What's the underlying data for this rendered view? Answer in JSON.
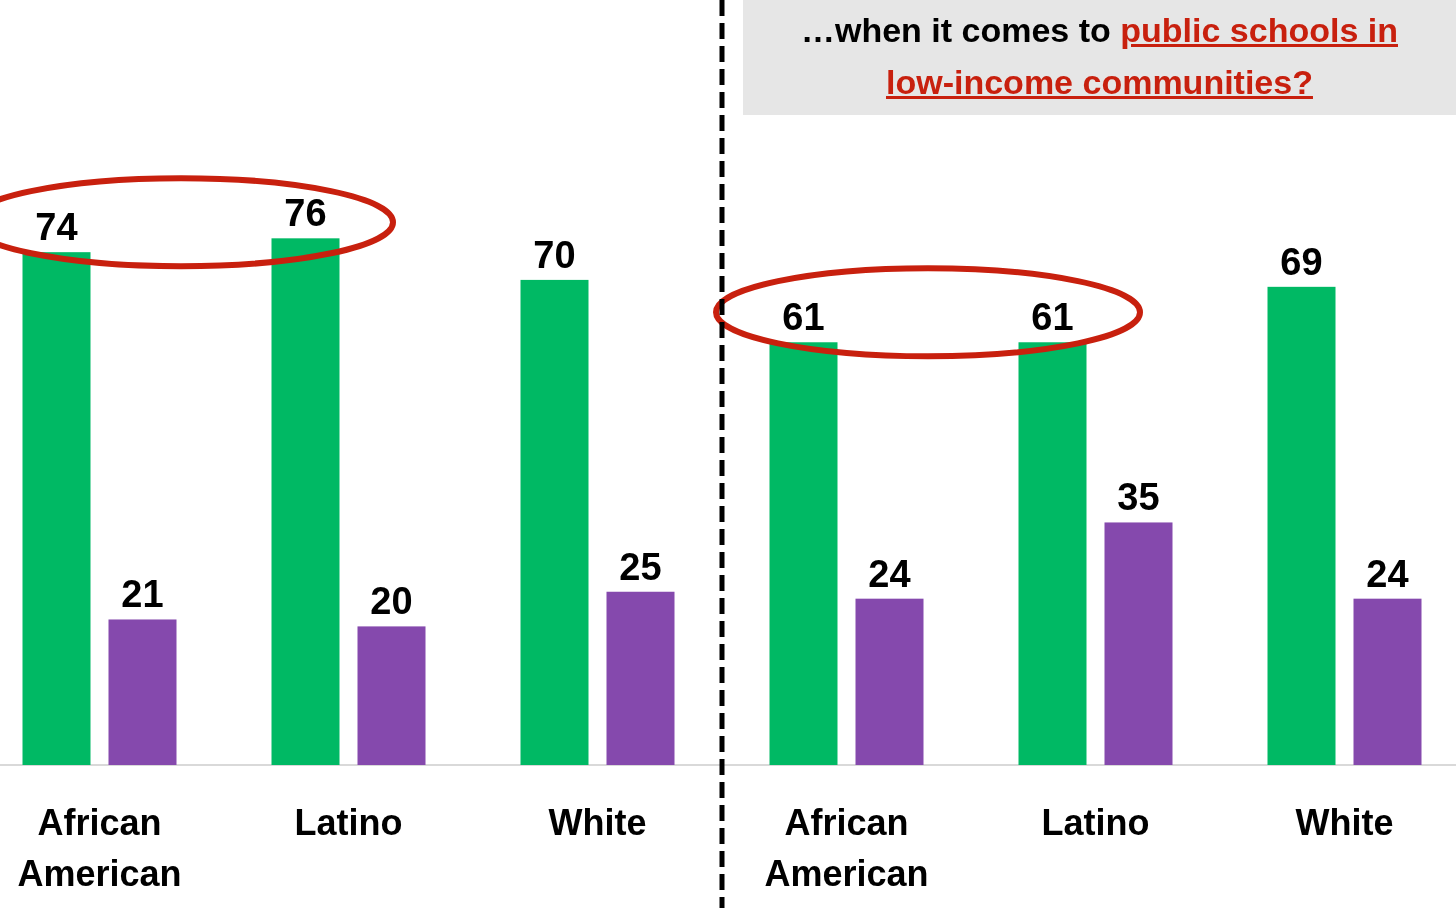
{
  "chart_data": [
    {
      "type": "bar",
      "categories": [
        "African American",
        "Latino",
        "White"
      ],
      "series": [
        {
          "color": "#00b964",
          "values": [
            74,
            76,
            70
          ]
        },
        {
          "color": "#8549ad",
          "values": [
            21,
            20,
            25
          ]
        }
      ],
      "data_labels": true
    },
    {
      "type": "bar",
      "title": "…when it comes to",
      "subtitle": "public schools in low-income communities?",
      "categories": [
        "African American",
        "Latino",
        "White"
      ],
      "series": [
        {
          "color": "#00b964",
          "values": [
            61,
            61,
            69
          ]
        },
        {
          "color": "#8549ad",
          "values": [
            24,
            35,
            24
          ]
        }
      ],
      "data_labels": true
    }
  ]
}
